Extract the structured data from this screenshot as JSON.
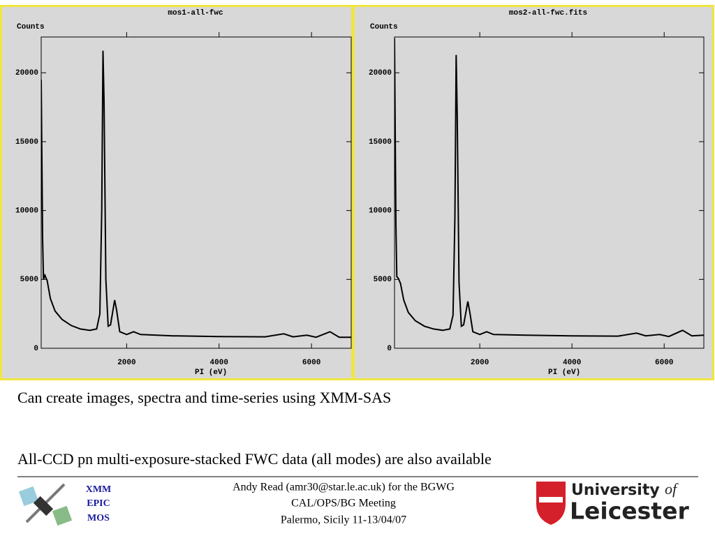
{
  "chart_data": [
    {
      "type": "line",
      "title": "mos1-all-fwc",
      "ylabel": "Counts",
      "xlabel": "PI (eV)",
      "xlim": [
        150,
        6860
      ],
      "ylim": [
        0,
        22600
      ],
      "xticks": [
        2000,
        4000,
        6000
      ],
      "yticks": [
        0,
        5000,
        10000,
        15000,
        20000
      ],
      "series": [
        {
          "name": "mos1",
          "color": "#000000",
          "x": [
            150,
            180,
            200,
            230,
            280,
            350,
            450,
            600,
            800,
            1000,
            1200,
            1350,
            1420,
            1460,
            1487,
            1510,
            1550,
            1600,
            1650,
            1740,
            1780,
            1850,
            2000,
            2150,
            2300,
            3000,
            4000,
            5000,
            5400,
            5600,
            5900,
            6100,
            6400,
            6600,
            6860
          ],
          "values": [
            19500,
            8000,
            5000,
            5300,
            4900,
            3600,
            2700,
            2100,
            1650,
            1400,
            1300,
            1400,
            2500,
            10000,
            21600,
            18000,
            5000,
            1600,
            1700,
            3500,
            2800,
            1200,
            1000,
            1200,
            1000,
            900,
            850,
            830,
            1050,
            830,
            950,
            800,
            1200,
            800,
            800
          ]
        }
      ]
    },
    {
      "type": "line",
      "title": "mos2-all-fwc.fits",
      "ylabel": "Counts",
      "xlabel": "PI (eV)",
      "xlim": [
        150,
        6860
      ],
      "ylim": [
        0,
        22600
      ],
      "xticks": [
        2000,
        4000,
        6000
      ],
      "yticks": [
        0,
        5000,
        10000,
        15000,
        20000
      ],
      "series": [
        {
          "name": "mos2",
          "color": "#000000",
          "x": [
            150,
            180,
            200,
            230,
            280,
            350,
            450,
            600,
            800,
            1000,
            1200,
            1350,
            1420,
            1460,
            1487,
            1510,
            1550,
            1600,
            1650,
            1740,
            1780,
            1850,
            2000,
            2150,
            2300,
            3000,
            4000,
            5000,
            5400,
            5600,
            5900,
            6100,
            6400,
            6600,
            6860
          ],
          "values": [
            22500,
            9000,
            5200,
            5100,
            4700,
            3500,
            2600,
            2000,
            1600,
            1400,
            1300,
            1400,
            2400,
            9500,
            21300,
            17000,
            4800,
            1600,
            1700,
            3400,
            2700,
            1200,
            1000,
            1200,
            1000,
            950,
            900,
            880,
            1100,
            900,
            1000,
            850,
            1300,
            900,
            950
          ]
        }
      ]
    }
  ],
  "slide": {
    "line1": "Can create images, spectra and time-series using XMM-SAS",
    "line2": "All-CCD pn multi-exposure-stacked FWC data (all modes) are also available",
    "footer": [
      "Andy Read (amr30@star.le.ac.uk) for the BGWG",
      "CAL/OPS/BG Meeting",
      "Palermo, Sicily 11-13/04/07"
    ],
    "badge": [
      "XMM",
      "EPIC",
      "MOS"
    ],
    "logo": {
      "university": "University",
      "of": "of",
      "name": "Leicester"
    }
  }
}
